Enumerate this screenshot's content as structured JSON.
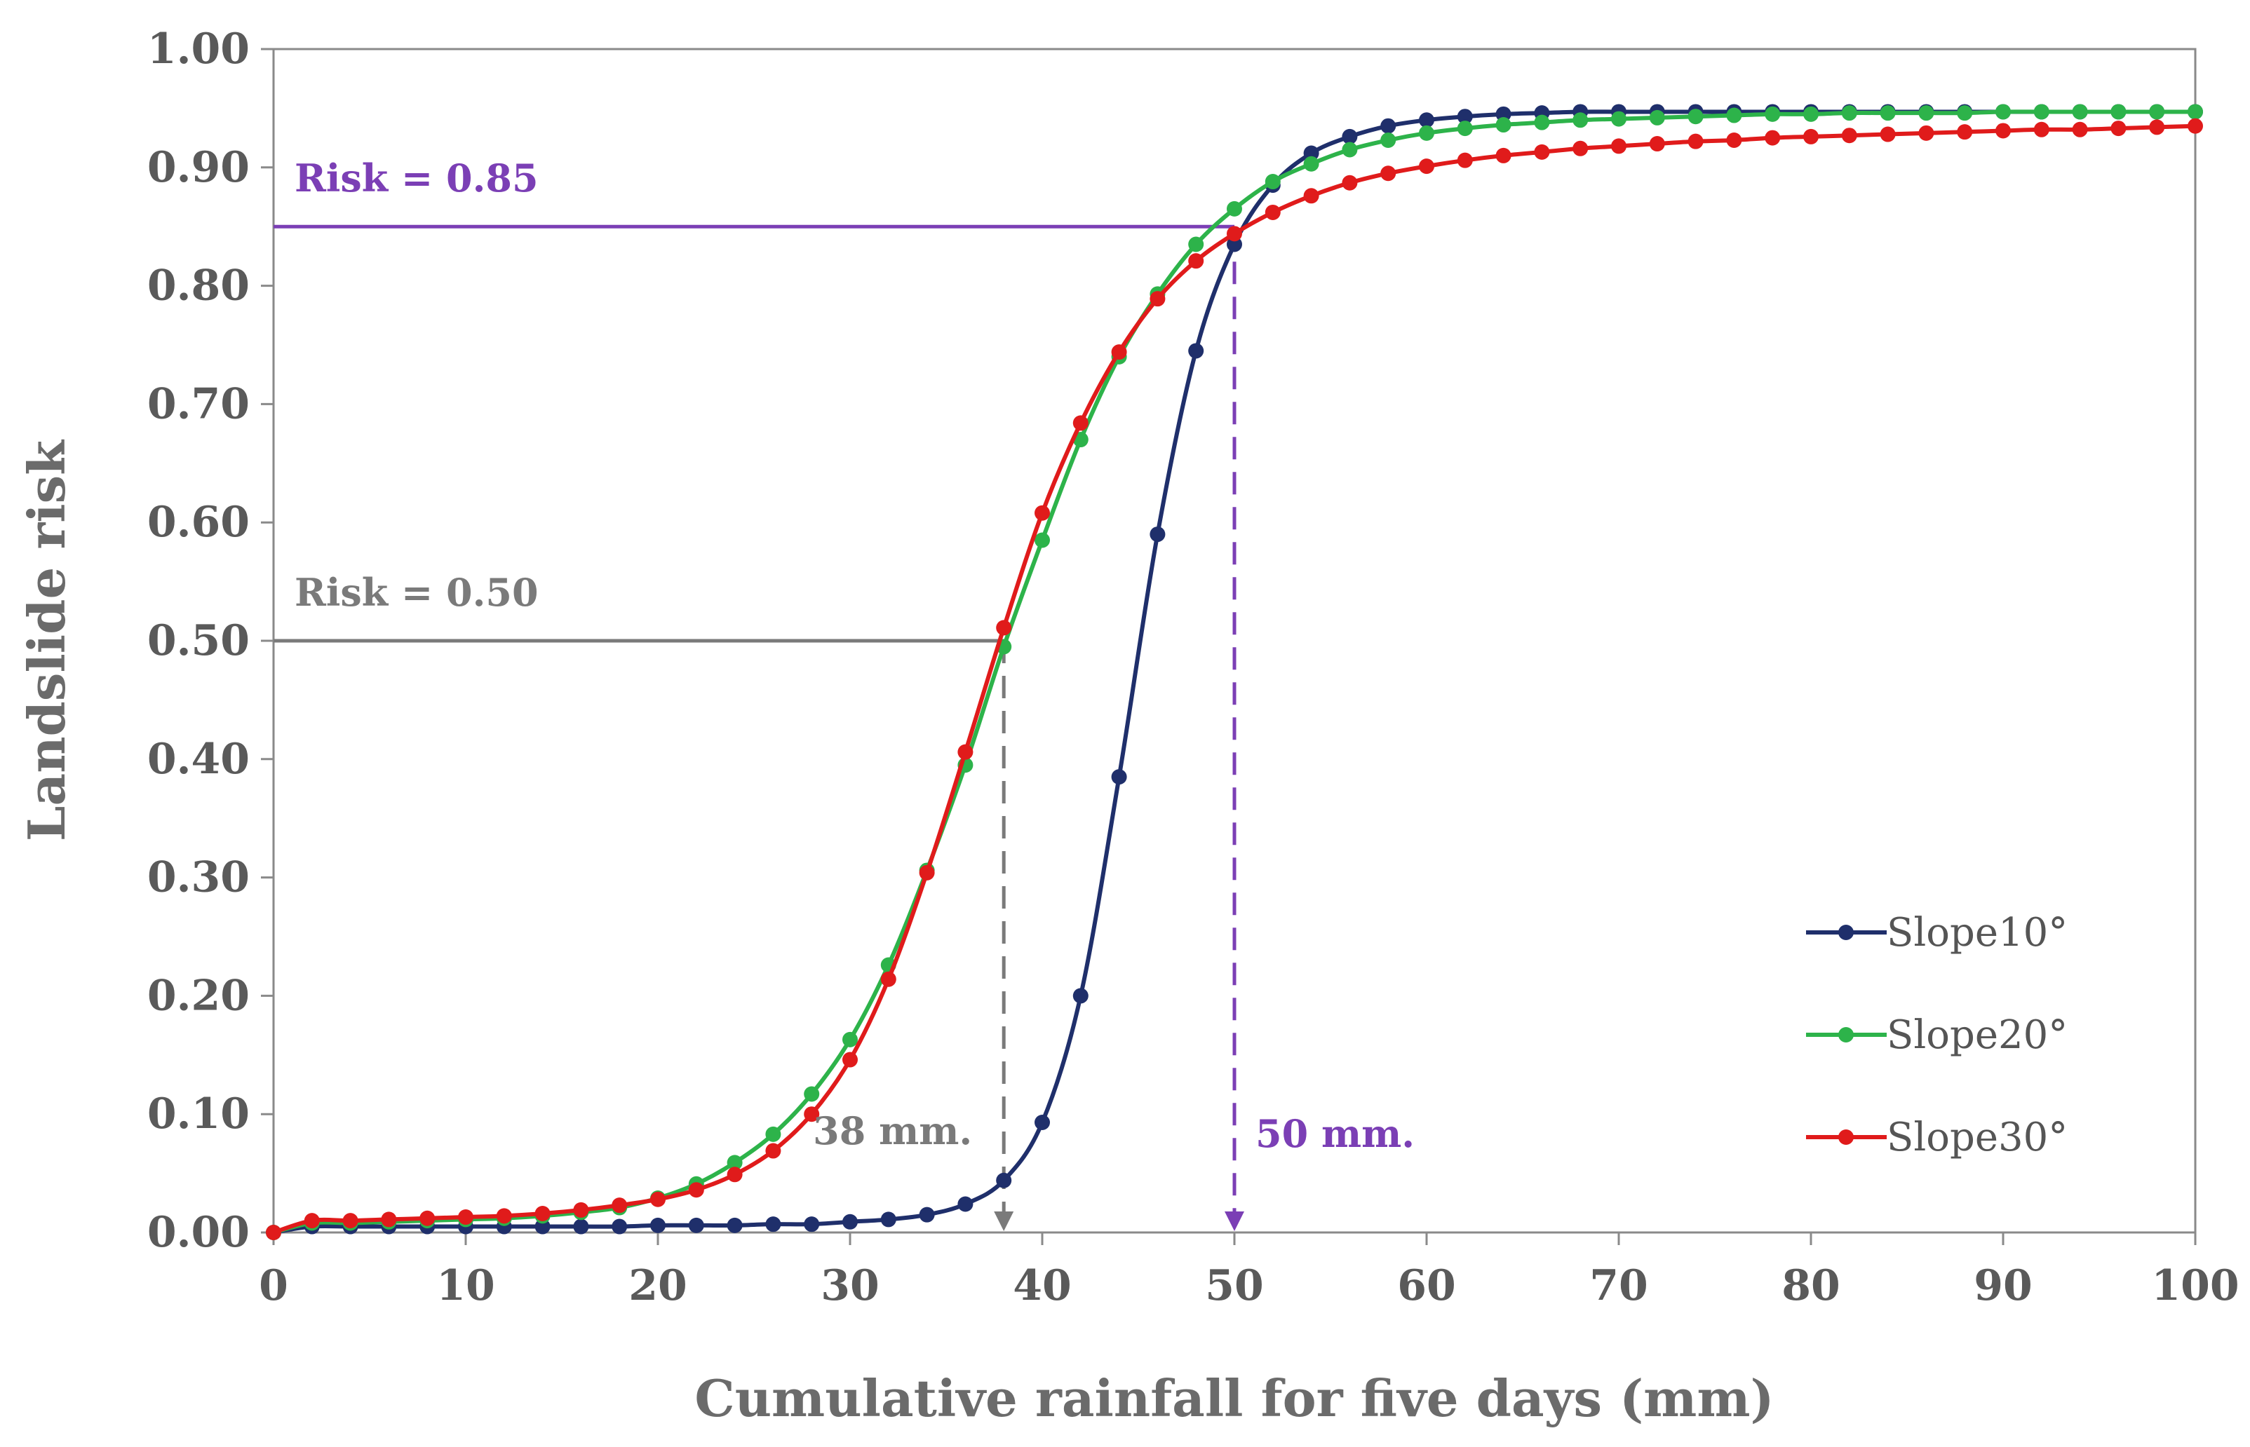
{
  "chart_data": {
    "type": "line",
    "title": "",
    "xlabel": "Cumulative rainfall for five days (mm)",
    "ylabel": "Landslide risk",
    "xlim": [
      0,
      100
    ],
    "ylim": [
      0,
      1.0
    ],
    "x_ticks": [
      0,
      10,
      20,
      30,
      40,
      50,
      60,
      70,
      80,
      90,
      100
    ],
    "x_tick_labels": [
      "0",
      "10",
      "20",
      "30",
      "40",
      "50",
      "60",
      "70",
      "80",
      "90",
      "100"
    ],
    "y_ticks": [
      0,
      0.1,
      0.2,
      0.3,
      0.4,
      0.5,
      0.6,
      0.7,
      0.8,
      0.9,
      1.0
    ],
    "y_tick_labels": [
      "0.00",
      "0.10",
      "0.20",
      "0.30",
      "0.40",
      "0.50",
      "0.60",
      "0.70",
      "0.80",
      "0.90",
      "1.00"
    ],
    "grid": false,
    "legend_position": "bottom-right",
    "x": [
      0,
      2,
      4,
      6,
      8,
      10,
      12,
      14,
      16,
      18,
      20,
      22,
      24,
      26,
      28,
      30,
      32,
      34,
      36,
      38,
      40,
      42,
      44,
      46,
      48,
      50,
      52,
      54,
      56,
      58,
      60,
      62,
      64,
      66,
      68,
      70,
      72,
      74,
      76,
      78,
      80,
      82,
      84,
      86,
      88,
      90,
      92,
      94,
      96,
      98,
      100
    ],
    "series": [
      {
        "name": "Slope10°",
        "color": "#1f2f6b",
        "values": [
          0.0,
          0.005,
          0.005,
          0.005,
          0.005,
          0.005,
          0.005,
          0.005,
          0.005,
          0.005,
          0.006,
          0.006,
          0.006,
          0.007,
          0.007,
          0.009,
          0.011,
          0.015,
          0.024,
          0.044,
          0.093,
          0.2,
          0.385,
          0.59,
          0.745,
          0.835,
          0.885,
          0.912,
          0.926,
          0.935,
          0.94,
          0.943,
          0.945,
          0.946,
          0.947,
          0.947,
          0.947,
          0.947,
          0.947,
          0.947,
          0.947,
          0.947,
          0.947,
          0.947,
          0.947,
          0.947,
          0.947,
          0.947,
          0.947,
          0.947,
          0.947
        ]
      },
      {
        "name": "Slope20°",
        "color": "#2db34a",
        "values": [
          0.0,
          0.008,
          0.008,
          0.009,
          0.01,
          0.011,
          0.012,
          0.014,
          0.017,
          0.021,
          0.029,
          0.041,
          0.059,
          0.083,
          0.117,
          0.163,
          0.226,
          0.306,
          0.395,
          0.495,
          0.585,
          0.67,
          0.74,
          0.793,
          0.835,
          0.865,
          0.888,
          0.903,
          0.915,
          0.923,
          0.929,
          0.933,
          0.936,
          0.938,
          0.94,
          0.941,
          0.942,
          0.943,
          0.944,
          0.945,
          0.945,
          0.946,
          0.946,
          0.946,
          0.946,
          0.947,
          0.947,
          0.947,
          0.947,
          0.947,
          0.947
        ]
      },
      {
        "name": "Slope30°",
        "color": "#e01b1b",
        "values": [
          0.0,
          0.01,
          0.01,
          0.011,
          0.012,
          0.013,
          0.014,
          0.016,
          0.019,
          0.023,
          0.028,
          0.036,
          0.049,
          0.069,
          0.1,
          0.146,
          0.214,
          0.304,
          0.406,
          0.511,
          0.608,
          0.684,
          0.744,
          0.789,
          0.821,
          0.844,
          0.862,
          0.876,
          0.887,
          0.895,
          0.901,
          0.906,
          0.91,
          0.913,
          0.916,
          0.918,
          0.92,
          0.922,
          0.923,
          0.925,
          0.926,
          0.927,
          0.928,
          0.929,
          0.93,
          0.931,
          0.932,
          0.932,
          0.933,
          0.934,
          0.935
        ]
      }
    ],
    "annotations": [
      {
        "text": "Risk = 0.85",
        "y": 0.85,
        "x_end": 50,
        "color": "#7b3fb5"
      },
      {
        "text": "Risk = 0.50",
        "y": 0.5,
        "x_end": 38,
        "color": "#7a7a7a"
      },
      {
        "text": "38 mm.",
        "x": 38,
        "color": "#7a7a7a"
      },
      {
        "text": "50 mm.",
        "x": 50,
        "color": "#7b3fb5"
      }
    ]
  }
}
